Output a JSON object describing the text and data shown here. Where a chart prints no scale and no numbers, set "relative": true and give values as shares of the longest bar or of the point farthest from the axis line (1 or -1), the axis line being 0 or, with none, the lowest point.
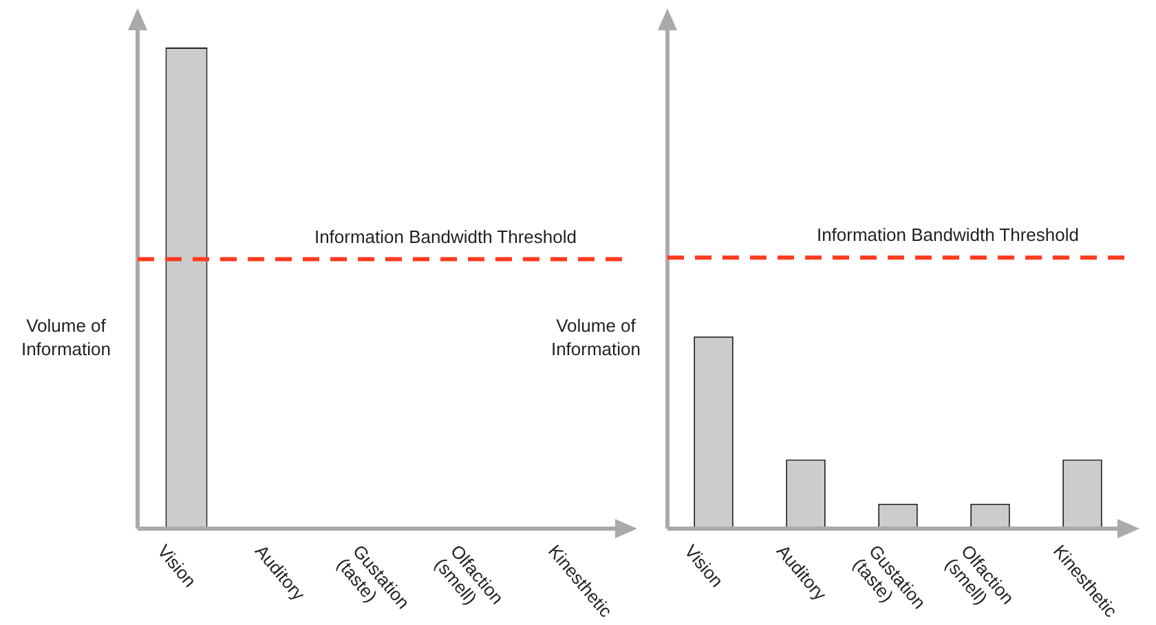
{
  "chart_data": [
    {
      "type": "bar",
      "relative": true,
      "ylabel": "Volume of Information",
      "categories": [
        "Vision",
        "Auditory",
        "Gustation (taste)",
        "Olfaction (smell)",
        "Kinesthetic"
      ],
      "values": [
        1,
        0,
        0,
        0,
        0
      ],
      "color": "#cccccc",
      "ref_lines": [
        {
          "axis": "y",
          "value": 0.56,
          "label": "Information Bandwidth Threshold",
          "color": "#ff3b1f",
          "line_style": "dashed"
        }
      ]
    },
    {
      "type": "bar",
      "relative": true,
      "ylabel": "Volume of Information",
      "categories": [
        "Vision",
        "Auditory",
        "Gustation (taste)",
        "Olfaction (smell)",
        "Kinesthetic"
      ],
      "values": [
        1,
        0.36,
        0.13,
        0.13,
        0.36
      ],
      "color": "#cccccc",
      "ref_lines": [
        {
          "axis": "y",
          "value": 1.41,
          "label": "Information Bandwidth Threshold",
          "color": "#ff3b1f",
          "line_style": "dashed"
        }
      ]
    }
  ]
}
